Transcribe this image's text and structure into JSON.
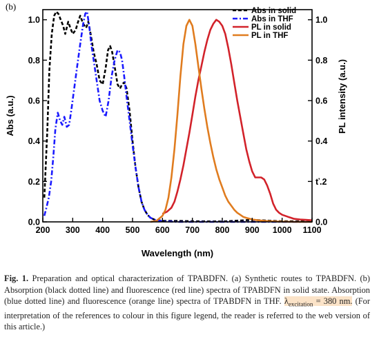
{
  "panel_label": "(b)",
  "chart_data": {
    "type": "line",
    "xlabel": "Wavelength (nm)",
    "ylabel_left": "Abs (a.u.)",
    "ylabel_right": "PL intensity (a.u.)",
    "xlim": [
      200,
      1100
    ],
    "ylim_left": [
      0,
      1.05
    ],
    "ylim_right": [
      0,
      1.05
    ],
    "x_ticks": [
      200,
      300,
      400,
      500,
      600,
      700,
      800,
      900,
      1000,
      1100
    ],
    "y_ticks_left": [
      "0.0",
      "0.2",
      "0.4",
      "0.6",
      "0.8",
      "1.0"
    ],
    "y_ticks_right": [
      "0.0",
      "ť.2",
      "0.4",
      "0.6",
      "0.8",
      "1.0"
    ],
    "legend_position": "top-right",
    "series": [
      {
        "name": "Abs in solid",
        "color": "#000000",
        "style": "dash",
        "axis": "left",
        "x": [
          205,
          215,
          222,
          230,
          238,
          245,
          252,
          260,
          268,
          275,
          285,
          292,
          300,
          310,
          318,
          325,
          335,
          345,
          352,
          360,
          370,
          380,
          390,
          400,
          410,
          418,
          425,
          432,
          440,
          450,
          458,
          465,
          472,
          480,
          490,
          500,
          510,
          520,
          530,
          540,
          550,
          560,
          575,
          600,
          650,
          700,
          800,
          900,
          1000,
          1100
        ],
        "y": [
          0.12,
          0.45,
          0.75,
          0.93,
          1.02,
          1.04,
          1.03,
          1.0,
          0.97,
          0.93,
          0.99,
          0.96,
          0.93,
          0.95,
          0.99,
          1.02,
          0.98,
          0.96,
          0.99,
          0.93,
          0.84,
          0.78,
          0.7,
          0.68,
          0.76,
          0.85,
          0.87,
          0.84,
          0.77,
          0.68,
          0.66,
          0.68,
          0.69,
          0.66,
          0.55,
          0.4,
          0.27,
          0.17,
          0.1,
          0.06,
          0.035,
          0.02,
          0.01,
          0.005,
          0.005,
          0.003,
          0.002,
          0.01,
          0.003,
          0.003
        ]
      },
      {
        "name": "Abs in THF",
        "color": "#1a1aff",
        "style": "dashdot",
        "axis": "left",
        "x": [
          205,
          212,
          220,
          228,
          235,
          242,
          250,
          258,
          265,
          272,
          280,
          288,
          295,
          305,
          315,
          325,
          335,
          342,
          348,
          355,
          362,
          370,
          380,
          390,
          400,
          410,
          420,
          430,
          440,
          450,
          458,
          465,
          472,
          480,
          490,
          500,
          510,
          520,
          530,
          540,
          550,
          560,
          575,
          600,
          650,
          700,
          800,
          900,
          1000,
          1100
        ],
        "y": [
          0.03,
          0.07,
          0.12,
          0.2,
          0.32,
          0.46,
          0.54,
          0.5,
          0.48,
          0.52,
          0.47,
          0.48,
          0.55,
          0.66,
          0.77,
          0.88,
          0.98,
          1.03,
          1.04,
          0.97,
          0.88,
          0.8,
          0.7,
          0.6,
          0.55,
          0.52,
          0.6,
          0.72,
          0.8,
          0.85,
          0.84,
          0.8,
          0.72,
          0.62,
          0.5,
          0.38,
          0.27,
          0.17,
          0.1,
          0.06,
          0.035,
          0.02,
          0.01,
          0.003,
          0.0,
          0.0,
          0.0,
          0.0,
          0.0,
          0.0
        ]
      },
      {
        "name": "PL in solid",
        "color": "#d2222a",
        "style": "solid",
        "axis": "right",
        "x": [
          600,
          615,
          630,
          640,
          650,
          660,
          670,
          680,
          690,
          700,
          710,
          720,
          730,
          740,
          750,
          760,
          770,
          780,
          790,
          800,
          810,
          820,
          830,
          840,
          850,
          860,
          870,
          880,
          890,
          900,
          910,
          920,
          930,
          940,
          950,
          960,
          970,
          980,
          990,
          1000,
          1010,
          1020,
          1030,
          1040,
          1060,
          1080,
          1100
        ],
        "y": [
          0.04,
          0.05,
          0.07,
          0.1,
          0.15,
          0.21,
          0.28,
          0.36,
          0.44,
          0.53,
          0.62,
          0.7,
          0.77,
          0.84,
          0.9,
          0.95,
          0.98,
          1.0,
          0.99,
          0.97,
          0.93,
          0.86,
          0.78,
          0.69,
          0.6,
          0.52,
          0.44,
          0.36,
          0.3,
          0.25,
          0.22,
          0.22,
          0.22,
          0.21,
          0.18,
          0.14,
          0.09,
          0.06,
          0.045,
          0.035,
          0.03,
          0.025,
          0.02,
          0.015,
          0.012,
          0.01,
          0.008
        ]
      },
      {
        "name": "PL in THF",
        "color": "#e07c1f",
        "style": "solid",
        "axis": "right",
        "x": [
          560,
          580,
          600,
          610,
          620,
          630,
          640,
          650,
          660,
          670,
          680,
          690,
          700,
          710,
          720,
          730,
          740,
          750,
          760,
          770,
          780,
          790,
          800,
          810,
          820,
          830,
          840,
          850,
          860,
          870,
          880,
          900,
          920,
          940,
          960,
          980,
          1000,
          1050,
          1100
        ],
        "y": [
          0.0,
          0.005,
          0.03,
          0.06,
          0.12,
          0.22,
          0.36,
          0.53,
          0.72,
          0.88,
          0.97,
          1.0,
          0.97,
          0.88,
          0.77,
          0.66,
          0.56,
          0.47,
          0.39,
          0.32,
          0.26,
          0.21,
          0.17,
          0.13,
          0.1,
          0.08,
          0.06,
          0.045,
          0.035,
          0.025,
          0.02,
          0.012,
          0.008,
          0.005,
          0.003,
          0.002,
          0.001,
          0.0,
          0.0
        ]
      }
    ]
  },
  "caption": {
    "fig_label": "Fig. 1.",
    "text_before": " Preparation and optical characterization of TPABDFN. (a) Synthetic routes to TPABDFN. (b) Absorption (black dotted line) and fluorescence (red line) spectra of TPABDFN in solid state. Absorption (blue dotted line) and fluorescence (orange line) spectra of TPABDFN in THF. ",
    "lambda_symbol": "λ",
    "lambda_sub": "excitation",
    "highlight_rest": " = 380 nm.",
    "text_after": " (For interpretation of the references to colour in this figure legend, the reader is referred to the web version of this article.)"
  }
}
